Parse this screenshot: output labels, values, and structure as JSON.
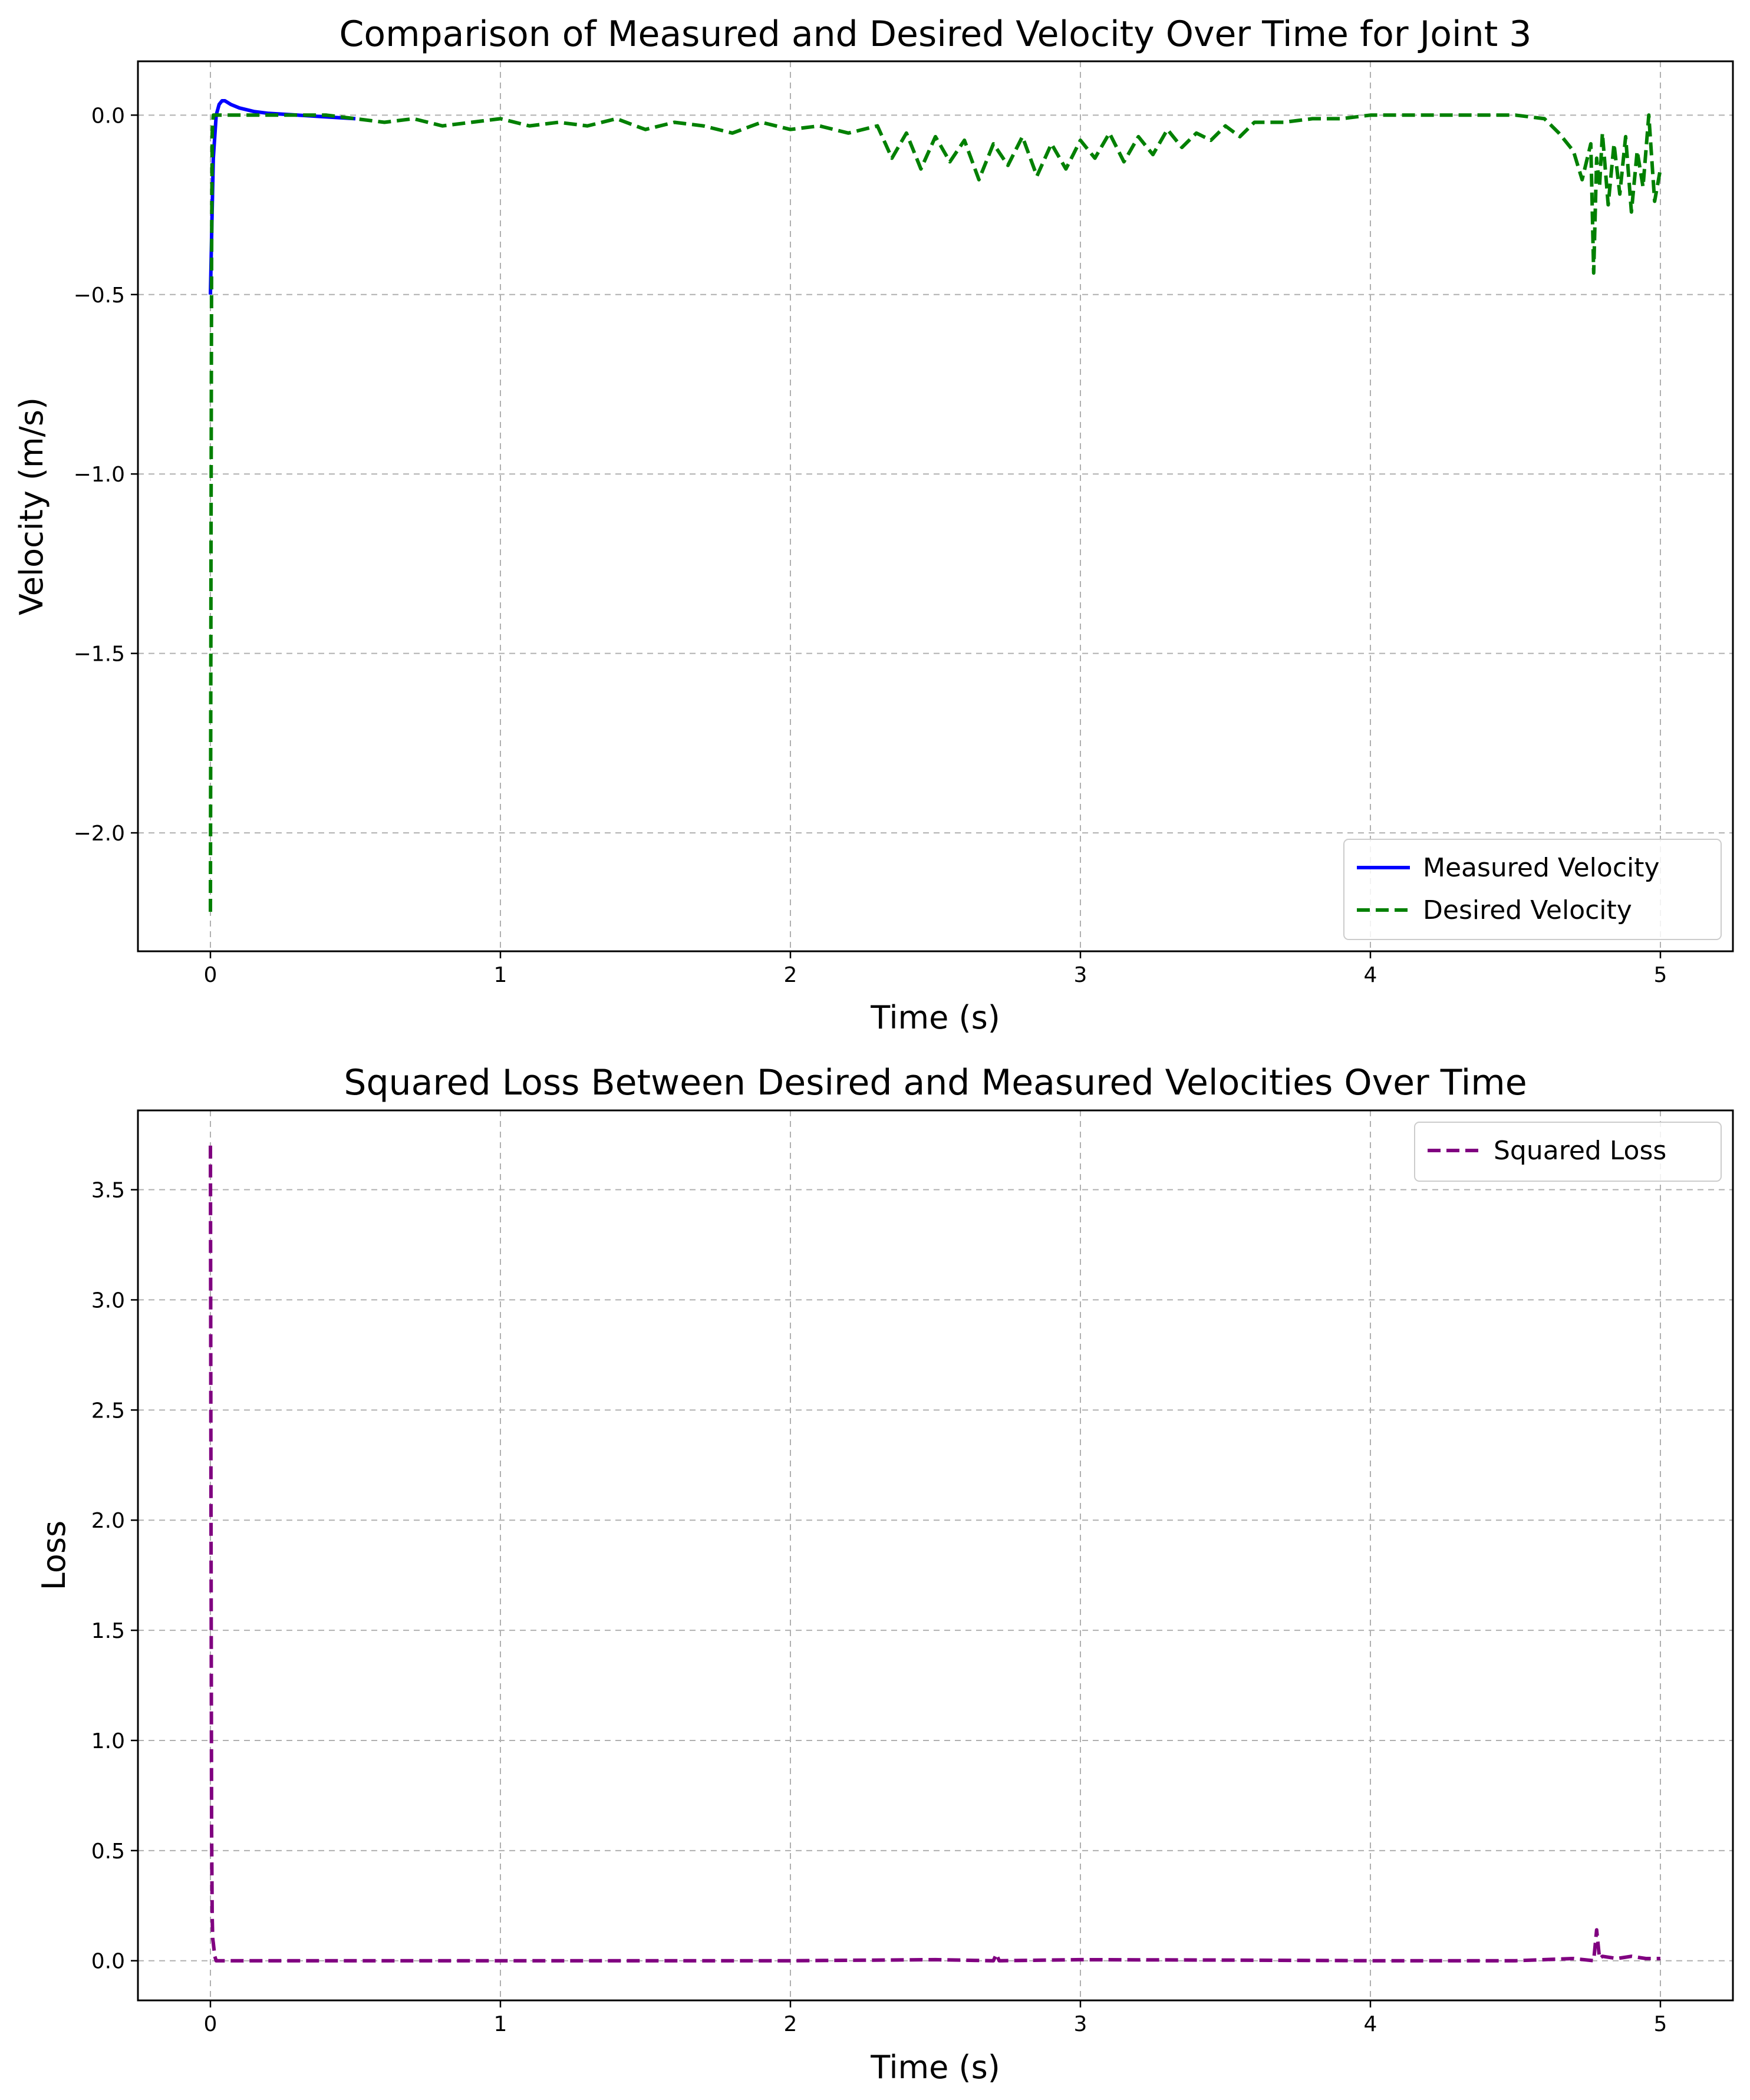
{
  "colors": {
    "measured": "#0000ff",
    "desired": "#008000",
    "loss": "#800080",
    "grid": "#b0b0b0"
  },
  "chart_data": [
    {
      "type": "line",
      "title": "Comparison of Measured and Desired Velocity Over Time for Joint 3",
      "xlabel": "Time (s)",
      "ylabel": "Velocity (m/s)",
      "xlim": [
        -0.25,
        5.25
      ],
      "ylim": [
        -2.33,
        0.15
      ],
      "xticks": [
        0,
        1,
        2,
        3,
        4,
        5
      ],
      "xtick_labels": [
        "0",
        "1",
        "2",
        "3",
        "4",
        "5"
      ],
      "yticks": [
        0.0,
        -0.5,
        -1.0,
        -1.5,
        -2.0
      ],
      "ytick_labels": [
        "0.0",
        "−0.5",
        "−1.0",
        "−1.5",
        "−2.0"
      ],
      "grid": true,
      "legend_position": "lower-right",
      "series": [
        {
          "name": "Measured Velocity",
          "style": "solid",
          "color": "#0000ff",
          "x": [
            0.0,
            0.005,
            0.01,
            0.02,
            0.03,
            0.04,
            0.05,
            0.07,
            0.1,
            0.15,
            0.2,
            0.3,
            0.4,
            0.5
          ],
          "y": [
            -0.5,
            -0.3,
            -0.12,
            0.0,
            0.03,
            0.04,
            0.04,
            0.03,
            0.02,
            0.01,
            0.005,
            0.0,
            -0.005,
            -0.01
          ]
        },
        {
          "name": "Desired Velocity",
          "style": "dashed",
          "color": "#008000",
          "x": [
            0.0,
            0.002,
            0.004,
            0.006,
            0.01,
            0.05,
            0.1,
            0.2,
            0.3,
            0.4,
            0.5,
            0.6,
            0.7,
            0.8,
            0.9,
            1.0,
            1.1,
            1.2,
            1.3,
            1.4,
            1.5,
            1.6,
            1.7,
            1.8,
            1.9,
            2.0,
            2.1,
            2.2,
            2.3,
            2.35,
            2.4,
            2.45,
            2.5,
            2.55,
            2.6,
            2.65,
            2.7,
            2.75,
            2.8,
            2.85,
            2.9,
            2.95,
            3.0,
            3.05,
            3.1,
            3.15,
            3.2,
            3.25,
            3.3,
            3.35,
            3.4,
            3.45,
            3.5,
            3.55,
            3.6,
            3.7,
            3.8,
            3.9,
            4.0,
            4.1,
            4.2,
            4.3,
            4.4,
            4.5,
            4.6,
            4.65,
            4.7,
            4.73,
            4.76,
            4.77,
            4.78,
            4.79,
            4.8,
            4.82,
            4.84,
            4.86,
            4.88,
            4.9,
            4.92,
            4.94,
            4.96,
            4.98,
            5.0
          ],
          "y": [
            -2.22,
            -1.2,
            -0.4,
            -0.05,
            0.0,
            0.0,
            0.0,
            0.0,
            0.0,
            0.0,
            -0.01,
            -0.02,
            -0.01,
            -0.03,
            -0.02,
            -0.01,
            -0.03,
            -0.02,
            -0.03,
            -0.01,
            -0.04,
            -0.02,
            -0.03,
            -0.05,
            -0.02,
            -0.04,
            -0.03,
            -0.05,
            -0.03,
            -0.12,
            -0.05,
            -0.15,
            -0.06,
            -0.13,
            -0.07,
            -0.18,
            -0.08,
            -0.14,
            -0.06,
            -0.17,
            -0.08,
            -0.15,
            -0.07,
            -0.12,
            -0.05,
            -0.13,
            -0.06,
            -0.11,
            -0.04,
            -0.09,
            -0.05,
            -0.07,
            -0.03,
            -0.06,
            -0.02,
            -0.02,
            -0.01,
            -0.01,
            0.0,
            0.0,
            0.0,
            0.0,
            0.0,
            0.0,
            -0.01,
            -0.05,
            -0.1,
            -0.18,
            -0.08,
            -0.44,
            -0.12,
            -0.2,
            -0.05,
            -0.25,
            -0.08,
            -0.22,
            -0.06,
            -0.27,
            -0.1,
            -0.2,
            0.0,
            -0.24,
            -0.15
          ]
        }
      ]
    },
    {
      "type": "line",
      "title": "Squared Loss Between Desired and Measured Velocities Over Time",
      "xlabel": "Time (s)",
      "ylabel": "Loss",
      "xlim": [
        -0.25,
        5.25
      ],
      "ylim": [
        -0.18,
        3.86
      ],
      "xticks": [
        0,
        1,
        2,
        3,
        4,
        5
      ],
      "xtick_labels": [
        "0",
        "1",
        "2",
        "3",
        "4",
        "5"
      ],
      "yticks": [
        0.0,
        0.5,
        1.0,
        1.5,
        2.0,
        2.5,
        3.0,
        3.5
      ],
      "ytick_labels": [
        "0.0",
        "0.5",
        "1.0",
        "1.5",
        "2.0",
        "2.5",
        "3.0",
        "3.5"
      ],
      "grid": true,
      "legend_position": "upper-right",
      "series": [
        {
          "name": "Squared Loss",
          "style": "dashed",
          "color": "#800080",
          "x": [
            0.0,
            0.002,
            0.004,
            0.006,
            0.008,
            0.01,
            0.015,
            0.02,
            0.5,
            1.0,
            1.5,
            2.0,
            2.5,
            2.7,
            2.71,
            2.72,
            3.0,
            3.5,
            4.0,
            4.5,
            4.7,
            4.77,
            4.78,
            4.79,
            4.8,
            4.85,
            4.9,
            4.95,
            5.0
          ],
          "y": [
            3.7,
            2.0,
            0.6,
            0.2,
            0.1,
            0.08,
            0.02,
            0.0,
            0.0,
            0.0,
            0.0,
            0.0,
            0.005,
            0.0,
            0.03,
            0.0,
            0.005,
            0.003,
            0.0,
            0.0,
            0.01,
            0.0,
            0.14,
            0.01,
            0.02,
            0.01,
            0.02,
            0.01,
            0.01
          ]
        }
      ]
    }
  ]
}
